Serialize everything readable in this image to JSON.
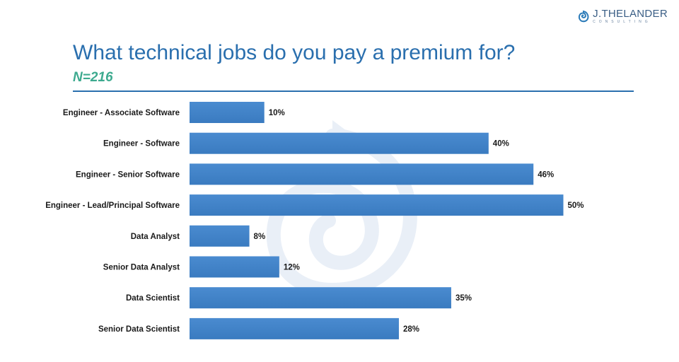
{
  "header": {
    "logo_name": "J.THELANDER",
    "logo_sub": "CONSULTING",
    "title": "What technical jobs do you pay a premium for?",
    "subtitle": "N=216"
  },
  "colors": {
    "bar": "#3a7bc0",
    "title": "#2a6fae",
    "subtitle": "#3daa8f",
    "text": "#1a1a1a"
  },
  "chart_data": {
    "type": "bar",
    "orientation": "horizontal",
    "title": "What technical jobs do you pay a premium for?",
    "subtitle": "N=216",
    "categories": [
      "Engineer - Associate Software",
      "Engineer - Software",
      "Engineer - Senior Software",
      "Engineer - Lead/Principal Software",
      "Data Analyst",
      "Senior Data Analyst",
      "Data Scientist",
      "Senior Data Scientist"
    ],
    "values": [
      10,
      40,
      46,
      50,
      8,
      12,
      35,
      28
    ],
    "value_labels": [
      "10%",
      "40%",
      "46%",
      "50%",
      "8%",
      "12%",
      "35%",
      "28%"
    ],
    "unit": "%",
    "xlim": [
      0,
      50
    ],
    "grid": false,
    "legend": "none"
  }
}
